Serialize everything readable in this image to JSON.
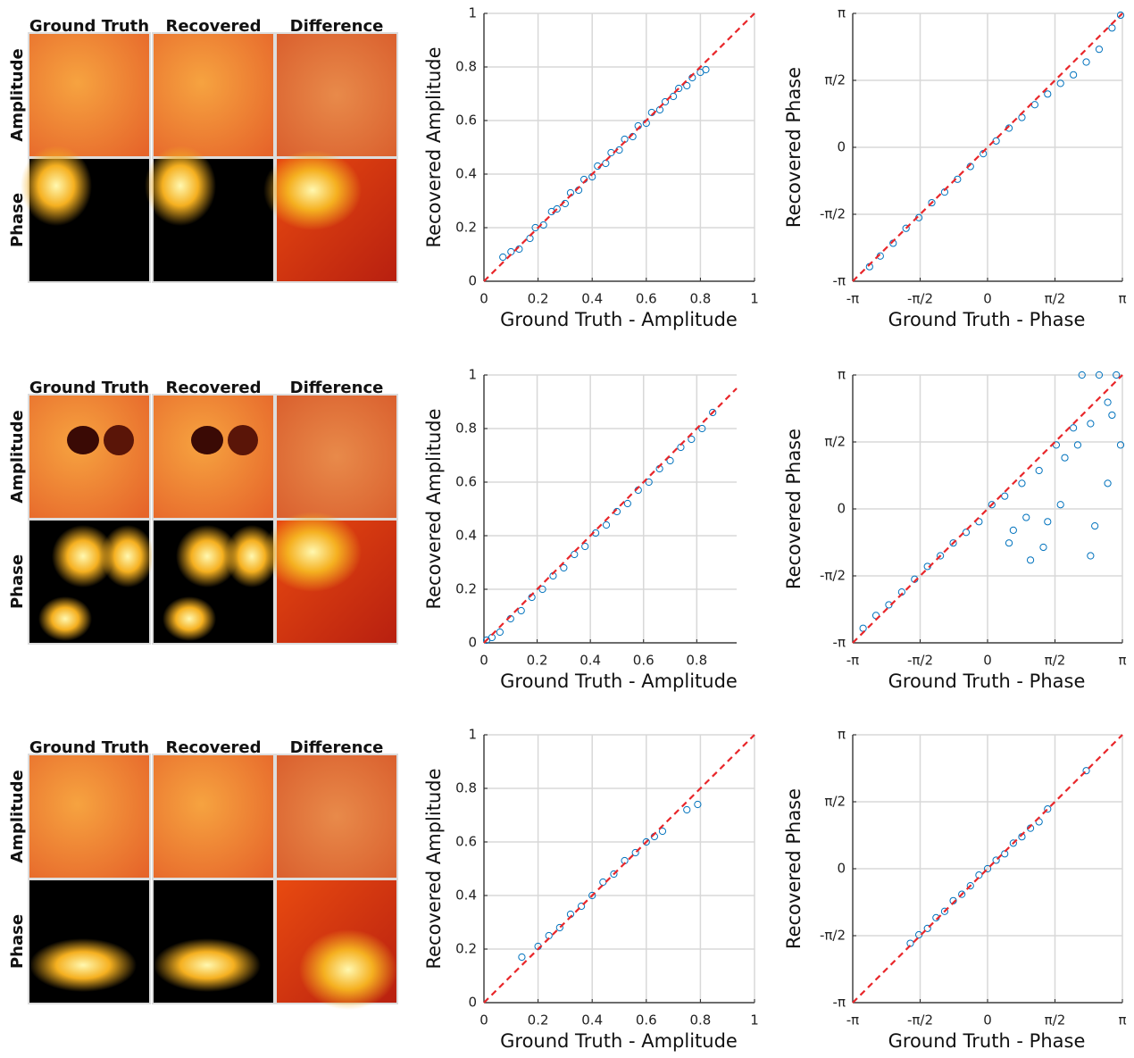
{
  "image_panels": [
    {
      "columns": [
        "Ground Truth",
        "Recovered",
        "Difference"
      ],
      "rows": [
        "Amplitude",
        "Phase"
      ]
    },
    {
      "columns": [
        "Ground Truth",
        "Recovered",
        "Difference"
      ],
      "rows": [
        "Amplitude",
        "Phase"
      ]
    },
    {
      "columns": [
        "Ground Truth",
        "Recovered",
        "Difference"
      ],
      "rows": [
        "Amplitude",
        "Phase"
      ]
    }
  ],
  "chart_data": [
    {
      "type": "scatter",
      "x_label": "Ground Truth - Amplitude",
      "y_label": "Recovered Amplitude",
      "color": "#0072bd",
      "grid": true,
      "reference_line": {
        "kind": "identity",
        "color": "#e8262a",
        "dashed": true
      },
      "xlim": [
        0,
        1
      ],
      "ylim": [
        0,
        1
      ],
      "xticks": [
        0,
        0.2,
        0.4,
        0.6,
        0.8,
        1
      ],
      "yticks": [
        0,
        0.2,
        0.4,
        0.6,
        0.8,
        1
      ],
      "x": [
        0.07,
        0.1,
        0.13,
        0.17,
        0.19,
        0.22,
        0.25,
        0.27,
        0.3,
        0.32,
        0.35,
        0.37,
        0.4,
        0.42,
        0.45,
        0.47,
        0.5,
        0.52,
        0.55,
        0.57,
        0.6,
        0.62,
        0.65,
        0.67,
        0.7,
        0.72,
        0.75,
        0.77,
        0.8,
        0.82
      ],
      "values": [
        0.09,
        0.11,
        0.12,
        0.16,
        0.2,
        0.21,
        0.26,
        0.27,
        0.29,
        0.33,
        0.34,
        0.38,
        0.39,
        0.43,
        0.44,
        0.48,
        0.49,
        0.53,
        0.54,
        0.58,
        0.59,
        0.63,
        0.64,
        0.67,
        0.69,
        0.72,
        0.73,
        0.76,
        0.78,
        0.79
      ]
    },
    {
      "type": "scatter",
      "x_label": "Ground Truth - Phase",
      "y_label": "Recovered Phase",
      "color": "#0072bd",
      "grid": true,
      "reference_line": {
        "kind": "identity",
        "color": "#e8262a",
        "dashed": true
      },
      "xlim": [
        -3.1416,
        3.1416
      ],
      "ylim": [
        -3.1416,
        3.1416
      ],
      "xticks": [
        {
          "value": -3.1416,
          "label": "-π"
        },
        {
          "value": -1.5708,
          "label": "-π/2"
        },
        0,
        {
          "value": 1.5708,
          "label": "π/2"
        },
        {
          "value": 3.1416,
          "label": "π"
        }
      ],
      "yticks": [
        {
          "value": -3.1416,
          "label": "-π"
        },
        {
          "value": -1.5708,
          "label": "-π/2"
        },
        0,
        {
          "value": 1.5708,
          "label": "π/2"
        },
        {
          "value": 3.1416,
          "label": "π"
        }
      ],
      "x": [
        -2.75,
        -2.5,
        -2.2,
        -1.9,
        -1.6,
        -1.3,
        -1.0,
        -0.7,
        -0.4,
        -0.1,
        0.2,
        0.5,
        0.8,
        1.1,
        1.4,
        1.7,
        2.0,
        2.3,
        2.6,
        2.9,
        3.1
      ],
      "values": [
        -2.8,
        -2.55,
        -2.25,
        -1.9,
        -1.65,
        -1.3,
        -1.05,
        -0.75,
        -0.45,
        -0.15,
        0.15,
        0.45,
        0.7,
        1.0,
        1.25,
        1.5,
        1.7,
        2.0,
        2.3,
        2.8,
        3.1
      ]
    },
    {
      "type": "scatter",
      "x_label": "Ground Truth - Amplitude",
      "y_label": "Recovered Amplitude",
      "color": "#0072bd",
      "grid": true,
      "reference_line": {
        "kind": "identity",
        "color": "#e8262a",
        "dashed": true
      },
      "xlim": [
        0,
        0.95
      ],
      "ylim": [
        0,
        1
      ],
      "xticks": [
        0,
        0.2,
        0.4,
        0.6,
        0.8
      ],
      "yticks": [
        0,
        0.2,
        0.4,
        0.6,
        0.8,
        1
      ],
      "x": [
        0.01,
        0.03,
        0.06,
        0.1,
        0.14,
        0.18,
        0.22,
        0.26,
        0.3,
        0.34,
        0.38,
        0.42,
        0.46,
        0.5,
        0.54,
        0.58,
        0.62,
        0.66,
        0.7,
        0.74,
        0.78,
        0.82,
        0.86
      ],
      "values": [
        0.01,
        0.02,
        0.04,
        0.09,
        0.12,
        0.17,
        0.2,
        0.25,
        0.28,
        0.33,
        0.36,
        0.41,
        0.44,
        0.49,
        0.52,
        0.57,
        0.6,
        0.65,
        0.68,
        0.73,
        0.76,
        0.8,
        0.86
      ]
    },
    {
      "type": "scatter",
      "x_label": "Ground Truth - Phase",
      "y_label": "Recovered Phase",
      "color": "#0072bd",
      "grid": true,
      "reference_line": {
        "kind": "identity",
        "color": "#e8262a",
        "dashed": true
      },
      "xlim": [
        -3.1416,
        3.1416
      ],
      "ylim": [
        -3.1416,
        3.1416
      ],
      "xticks": [
        {
          "value": -3.1416,
          "label": "-π"
        },
        {
          "value": -1.5708,
          "label": "-π/2"
        },
        0,
        {
          "value": 1.5708,
          "label": "π/2"
        },
        {
          "value": 3.1416,
          "label": "π"
        }
      ],
      "yticks": [
        {
          "value": -3.1416,
          "label": "-π"
        },
        {
          "value": -1.5708,
          "label": "-π/2"
        },
        0,
        {
          "value": 1.5708,
          "label": "π/2"
        },
        {
          "value": 3.1416,
          "label": "π"
        }
      ],
      "x": [
        -2.9,
        -2.6,
        -2.3,
        -2.0,
        -1.7,
        -1.4,
        -1.1,
        -0.8,
        -0.5,
        -0.2,
        0.1,
        0.4,
        0.6,
        0.8,
        1.0,
        1.2,
        1.4,
        1.6,
        1.8,
        2.0,
        2.2,
        2.4,
        2.6,
        2.8,
        3.0,
        0.5,
        0.9,
        1.3,
        1.7,
        2.1,
        2.5,
        2.9,
        3.1,
        2.4,
        2.8
      ],
      "values": [
        -2.8,
        -2.5,
        -2.25,
        -1.95,
        -1.65,
        -1.35,
        -1.1,
        -0.8,
        -0.55,
        -0.3,
        0.1,
        0.3,
        -0.5,
        0.6,
        -1.2,
        0.9,
        -0.3,
        1.5,
        1.2,
        1.9,
        3.1416,
        2.0,
        3.1416,
        2.5,
        3.1416,
        -0.8,
        -0.2,
        -0.9,
        0.1,
        1.5,
        -0.4,
        2.2,
        1.5,
        -1.1,
        0.6
      ]
    },
    {
      "type": "scatter",
      "x_label": "Ground Truth - Amplitude",
      "y_label": "Recovered Amplitude",
      "color": "#0072bd",
      "grid": true,
      "reference_line": {
        "kind": "identity",
        "color": "#e8262a",
        "dashed": true
      },
      "xlim": [
        0,
        1
      ],
      "ylim": [
        0,
        1
      ],
      "xticks": [
        0,
        0.2,
        0.4,
        0.6,
        0.8,
        1
      ],
      "yticks": [
        0,
        0.2,
        0.4,
        0.6,
        0.8,
        1
      ],
      "x": [
        0.14,
        0.2,
        0.24,
        0.28,
        0.32,
        0.36,
        0.4,
        0.44,
        0.48,
        0.52,
        0.56,
        0.6,
        0.63,
        0.66,
        0.75,
        0.79
      ],
      "values": [
        0.17,
        0.21,
        0.25,
        0.28,
        0.33,
        0.36,
        0.4,
        0.45,
        0.48,
        0.53,
        0.56,
        0.6,
        0.62,
        0.64,
        0.72,
        0.74
      ]
    },
    {
      "type": "scatter",
      "x_label": "Ground Truth - Phase",
      "y_label": "Recovered Phase",
      "color": "#0072bd",
      "grid": true,
      "reference_line": {
        "kind": "identity",
        "color": "#e8262a",
        "dashed": true
      },
      "xlim": [
        -3.1416,
        3.1416
      ],
      "ylim": [
        -3.1416,
        3.1416
      ],
      "xticks": [
        {
          "value": -3.1416,
          "label": "-π"
        },
        {
          "value": -1.5708,
          "label": "-π/2"
        },
        0,
        {
          "value": 1.5708,
          "label": "π/2"
        },
        {
          "value": 3.1416,
          "label": "π"
        }
      ],
      "yticks": [
        {
          "value": -3.1416,
          "label": "-π"
        },
        {
          "value": -1.5708,
          "label": "-π/2"
        },
        0,
        {
          "value": 1.5708,
          "label": "π/2"
        },
        {
          "value": 3.1416,
          "label": "π"
        }
      ],
      "x": [
        -1.8,
        -1.6,
        -1.4,
        -1.2,
        -1.0,
        -0.8,
        -0.6,
        -0.4,
        -0.2,
        0,
        0.2,
        0.4,
        0.6,
        0.8,
        1.0,
        1.2,
        1.4,
        2.3
      ],
      "values": [
        -1.75,
        -1.55,
        -1.4,
        -1.15,
        -1.0,
        -0.75,
        -0.6,
        -0.4,
        -0.15,
        0,
        0.2,
        0.35,
        0.6,
        0.75,
        0.95,
        1.1,
        1.4,
        2.3
      ]
    }
  ]
}
